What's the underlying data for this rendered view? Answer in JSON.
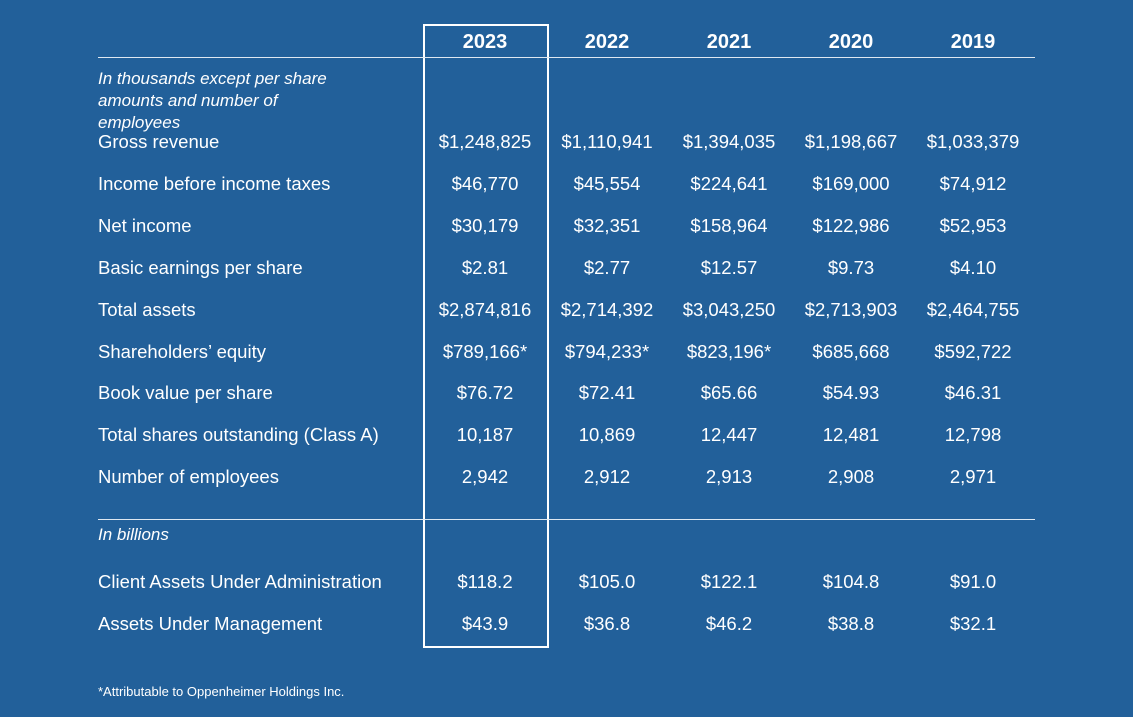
{
  "header": {
    "columns": [
      "2023",
      "2022",
      "2021",
      "2020",
      "2019"
    ]
  },
  "sections": [
    {
      "note": "In thousands except per share amounts and number of employees",
      "rows": [
        {
          "label": "Gross revenue",
          "values": [
            "$1,248,825",
            "$1,110,941",
            "$1,394,035",
            "$1,198,667",
            "$1,033,379"
          ]
        },
        {
          "label": "Income before income taxes",
          "values": [
            "$46,770",
            "$45,554",
            "$224,641",
            "$169,000",
            "$74,912"
          ]
        },
        {
          "label": "Net income",
          "values": [
            "$30,179",
            "$32,351",
            "$158,964",
            "$122,986",
            "$52,953"
          ]
        },
        {
          "label": "Basic earnings per share",
          "values": [
            "$2.81",
            "$2.77",
            "$12.57",
            "$9.73",
            "$4.10"
          ]
        },
        {
          "label": "Total assets",
          "values": [
            "$2,874,816",
            "$2,714,392",
            "$3,043,250",
            "$2,713,903",
            "$2,464,755"
          ]
        },
        {
          "label": "Shareholders’ equity",
          "values": [
            "$789,166*",
            "$794,233*",
            "$823,196*",
            "$685,668",
            "$592,722"
          ]
        },
        {
          "label": "Book value per share",
          "values": [
            "$76.72",
            "$72.41",
            "$65.66",
            "$54.93",
            "$46.31"
          ]
        },
        {
          "label": "Total shares outstanding (Class A)",
          "values": [
            "10,187",
            "10,869",
            "12,447",
            "12,481",
            "12,798"
          ]
        },
        {
          "label": "Number of employees",
          "values": [
            "2,942",
            "2,912",
            "2,913",
            "2,908",
            "2,971"
          ]
        }
      ]
    },
    {
      "note": "In billions",
      "rows": [
        {
          "label": "Client Assets Under Administration",
          "values": [
            "$118.2",
            "$105.0",
            "$122.1",
            "$104.8",
            "$91.0"
          ]
        },
        {
          "label": "Assets Under Management",
          "values": [
            "$43.9",
            "$36.8",
            "$46.2",
            "$38.8",
            "$32.1"
          ]
        }
      ]
    }
  ],
  "footnote": "*Attributable to Oppenheimer Holdings Inc."
}
